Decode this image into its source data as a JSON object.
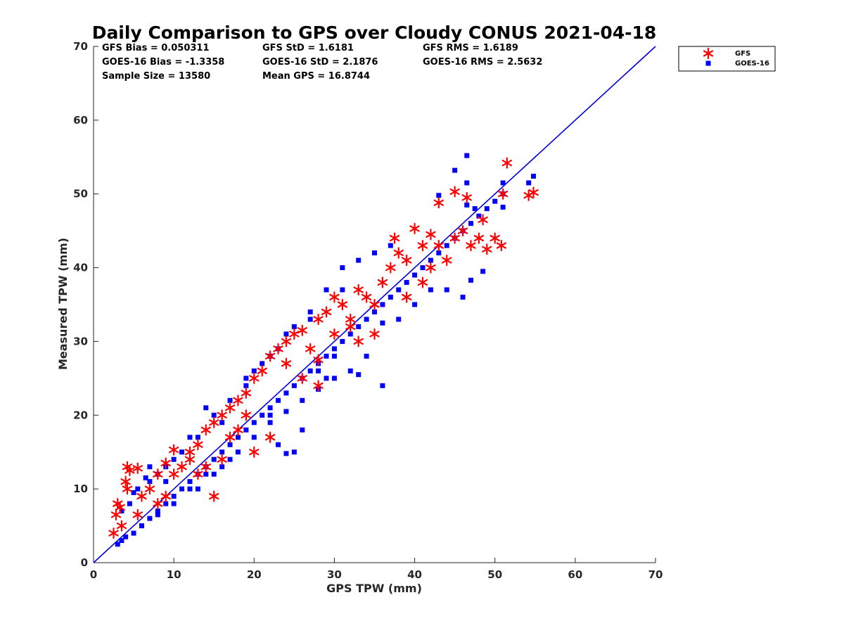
{
  "chart_data": {
    "type": "scatter",
    "title": "Daily Comparison to GPS over Cloudy CONUS 2021-04-18",
    "xlabel": "GPS TPW (mm)",
    "ylabel": "Measured TPW (mm)",
    "xlim": [
      0,
      70
    ],
    "ylim": [
      0,
      70
    ],
    "xticks": [
      "0",
      "10",
      "20",
      "30",
      "40",
      "50",
      "60",
      "70"
    ],
    "yticks": [
      "0",
      "10",
      "20",
      "30",
      "40",
      "50",
      "60",
      "70"
    ],
    "grid": false,
    "legend_position": "outside-top-right",
    "reference_line": {
      "x": [
        0,
        70
      ],
      "y": [
        0,
        70
      ],
      "color": "#0000dd"
    },
    "stats": {
      "gfs_bias": "GFS Bias = 0.050311",
      "gfs_std": "GFS StD = 1.6181",
      "gfs_rms": "GFS RMS = 1.6189",
      "goes_bias": "GOES-16 Bias = -1.3358",
      "goes_std": "GOES-16 StD = 2.1876",
      "goes_rms": "GOES-16 RMS = 2.5632",
      "sample_size": "Sample Size = 13580",
      "mean_gps": "Mean GPS = 16.8744"
    },
    "series": [
      {
        "name": "GFS",
        "marker": "asterisk",
        "color": "#ff0000",
        "points": [
          [
            2.5,
            4
          ],
          [
            2.8,
            6.5
          ],
          [
            3.0,
            8.0
          ],
          [
            3.3,
            7.5
          ],
          [
            4.2,
            13.0
          ],
          [
            4.0,
            11.0
          ],
          [
            4.5,
            12.5
          ],
          [
            5.5,
            12.8
          ],
          [
            4.2,
            10.0
          ],
          [
            3.5,
            5.0
          ],
          [
            6,
            9
          ],
          [
            7,
            10
          ],
          [
            8,
            12
          ],
          [
            9,
            13.5
          ],
          [
            10,
            15.3
          ],
          [
            10,
            12
          ],
          [
            11,
            13
          ],
          [
            12,
            15
          ],
          [
            13,
            16
          ],
          [
            14,
            18
          ],
          [
            15,
            19
          ],
          [
            16,
            20
          ],
          [
            17,
            21
          ],
          [
            18,
            22
          ],
          [
            19,
            23
          ],
          [
            20,
            25
          ],
          [
            21,
            26
          ],
          [
            22,
            28
          ],
          [
            23,
            29
          ],
          [
            24,
            30
          ],
          [
            25,
            31
          ],
          [
            26,
            31.5
          ],
          [
            27,
            29
          ],
          [
            28,
            33
          ],
          [
            29,
            34
          ],
          [
            30,
            36
          ],
          [
            31,
            35
          ],
          [
            32,
            33
          ],
          [
            33,
            37
          ],
          [
            34,
            36
          ],
          [
            35,
            35
          ],
          [
            36,
            38
          ],
          [
            37,
            40
          ],
          [
            37.5,
            44
          ],
          [
            38,
            42
          ],
          [
            39,
            41
          ],
          [
            40,
            45.3
          ],
          [
            41,
            43
          ],
          [
            41,
            38
          ],
          [
            42,
            44.5
          ],
          [
            43,
            48.8
          ],
          [
            43,
            43
          ],
          [
            44,
            41
          ],
          [
            45,
            50.3
          ],
          [
            45,
            44
          ],
          [
            46,
            45
          ],
          [
            46.5,
            49.5
          ],
          [
            47,
            43
          ],
          [
            48,
            44
          ],
          [
            48.5,
            46.5
          ],
          [
            49,
            42.5
          ],
          [
            50,
            44
          ],
          [
            50.8,
            43
          ],
          [
            51,
            50
          ],
          [
            51.5,
            54.2
          ],
          [
            54.2,
            49.8
          ],
          [
            54.8,
            50.2
          ],
          [
            33,
            30
          ],
          [
            26,
            25
          ],
          [
            22,
            17
          ],
          [
            15,
            9
          ],
          [
            14,
            13
          ],
          [
            12,
            14
          ],
          [
            9,
            9
          ],
          [
            16,
            14
          ],
          [
            18,
            18
          ],
          [
            20,
            15
          ],
          [
            24,
            27
          ],
          [
            28,
            27.5
          ],
          [
            32,
            32
          ],
          [
            39,
            36
          ],
          [
            42,
            40
          ],
          [
            35,
            31
          ],
          [
            30,
            31
          ],
          [
            28,
            24
          ],
          [
            19,
            20
          ],
          [
            17,
            17
          ],
          [
            13,
            12
          ],
          [
            8,
            8
          ],
          [
            5.5,
            6.5
          ]
        ]
      },
      {
        "name": "GOES-16",
        "marker": "square",
        "color": "#0000ff",
        "points": [
          [
            3,
            2.5
          ],
          [
            3.5,
            3.0
          ],
          [
            4,
            3.5
          ],
          [
            5,
            4
          ],
          [
            6,
            5
          ],
          [
            7,
            6
          ],
          [
            8,
            7
          ],
          [
            9,
            8
          ],
          [
            10,
            9
          ],
          [
            11,
            10
          ],
          [
            12,
            11
          ],
          [
            13,
            12
          ],
          [
            14,
            13
          ],
          [
            15,
            14
          ],
          [
            16,
            15
          ],
          [
            17,
            16
          ],
          [
            18,
            17
          ],
          [
            19,
            18
          ],
          [
            20,
            19
          ],
          [
            21,
            20
          ],
          [
            22,
            21
          ],
          [
            23,
            22
          ],
          [
            24,
            23
          ],
          [
            25,
            24
          ],
          [
            26,
            25
          ],
          [
            27,
            26
          ],
          [
            28,
            27
          ],
          [
            29,
            28
          ],
          [
            30,
            29
          ],
          [
            31,
            30
          ],
          [
            32,
            31
          ],
          [
            33,
            32
          ],
          [
            34,
            33
          ],
          [
            35,
            34
          ],
          [
            36,
            35
          ],
          [
            37,
            36
          ],
          [
            38,
            37
          ],
          [
            39,
            38
          ],
          [
            40,
            39
          ],
          [
            41,
            40
          ],
          [
            42,
            41
          ],
          [
            43,
            42
          ],
          [
            44,
            43
          ],
          [
            45,
            44
          ],
          [
            46,
            45
          ],
          [
            47,
            46
          ],
          [
            48,
            47
          ],
          [
            49,
            48
          ],
          [
            50,
            49
          ],
          [
            51,
            50
          ],
          [
            46.5,
            55.2
          ],
          [
            45,
            53.2
          ],
          [
            46.5,
            51.5
          ],
          [
            54.8,
            52.4
          ],
          [
            54.2,
            51.5
          ],
          [
            51,
            51.5
          ],
          [
            51,
            48.2
          ],
          [
            43,
            49.8
          ],
          [
            46.5,
            48.5
          ],
          [
            47.5,
            48
          ],
          [
            48.5,
            39.5
          ],
          [
            46,
            36
          ],
          [
            47,
            38.3
          ],
          [
            44,
            37
          ],
          [
            42,
            37
          ],
          [
            40,
            35
          ],
          [
            38,
            33
          ],
          [
            36,
            32.5
          ],
          [
            34,
            28
          ],
          [
            32,
            26
          ],
          [
            30,
            25
          ],
          [
            28,
            23.5
          ],
          [
            26,
            22
          ],
          [
            24,
            20.5
          ],
          [
            22,
            19
          ],
          [
            20,
            17
          ],
          [
            18,
            15
          ],
          [
            16,
            13
          ],
          [
            14,
            12
          ],
          [
            12,
            10
          ],
          [
            10,
            8
          ],
          [
            8,
            6.5
          ],
          [
            6,
            5
          ],
          [
            5,
            9.5
          ],
          [
            7,
            11
          ],
          [
            9,
            13
          ],
          [
            11,
            15
          ],
          [
            13,
            17
          ],
          [
            15,
            20
          ],
          [
            17,
            22
          ],
          [
            19,
            25
          ],
          [
            21,
            27
          ],
          [
            23,
            29
          ],
          [
            25,
            32
          ],
          [
            27,
            34
          ],
          [
            29,
            37
          ],
          [
            31,
            40
          ],
          [
            33,
            41
          ],
          [
            35,
            42
          ],
          [
            37,
            43
          ],
          [
            12,
            17
          ],
          [
            10,
            14
          ],
          [
            14,
            21
          ],
          [
            20,
            26
          ],
          [
            22,
            28
          ],
          [
            24,
            31
          ],
          [
            27,
            33
          ],
          [
            31,
            37
          ],
          [
            26,
            18
          ],
          [
            25,
            15
          ],
          [
            24,
            14.8
          ],
          [
            23,
            16
          ],
          [
            22,
            20
          ],
          [
            28,
            26
          ],
          [
            30,
            28
          ],
          [
            36,
            24
          ],
          [
            33,
            25.5
          ],
          [
            29,
            25
          ],
          [
            19,
            24
          ],
          [
            16,
            19
          ],
          [
            7,
            13
          ],
          [
            8,
            12
          ],
          [
            9,
            11
          ],
          [
            3.5,
            7
          ],
          [
            4.5,
            8
          ],
          [
            5.5,
            10
          ],
          [
            6.5,
            11.5
          ],
          [
            13,
            10
          ],
          [
            15,
            12
          ],
          [
            17,
            14
          ]
        ]
      }
    ]
  }
}
